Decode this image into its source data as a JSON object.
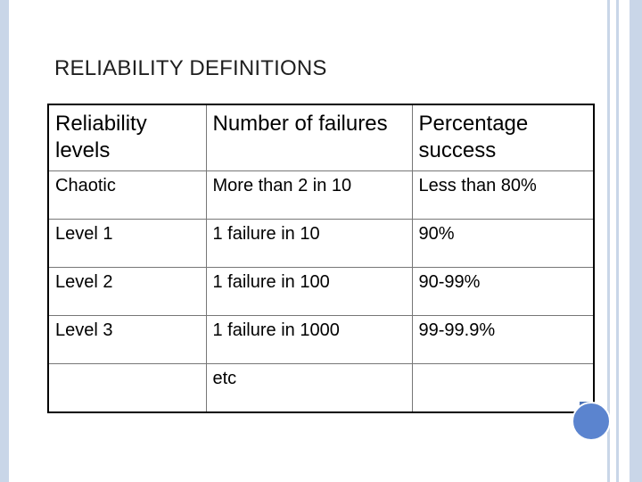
{
  "slide": {
    "title": "RELIABILITY DEFINITIONS"
  },
  "table": {
    "headers": [
      "Reliability levels",
      "Number of failures",
      "Percentage success"
    ],
    "rows": [
      [
        "Chaotic",
        "More than 2 in 10",
        "Less than 80%"
      ],
      [
        "Level 1",
        "1 failure in 10",
        "90%"
      ],
      [
        "Level 2",
        "1 failure in 100",
        "90-99%"
      ],
      [
        "Level 3",
        "1 failure in 1000",
        "99-99.9%"
      ],
      [
        "",
        "etc",
        ""
      ]
    ]
  },
  "colors": {
    "frame": "#c9d6e8",
    "accent": "#5b84cf",
    "accent_dark": "#4a72b8"
  }
}
